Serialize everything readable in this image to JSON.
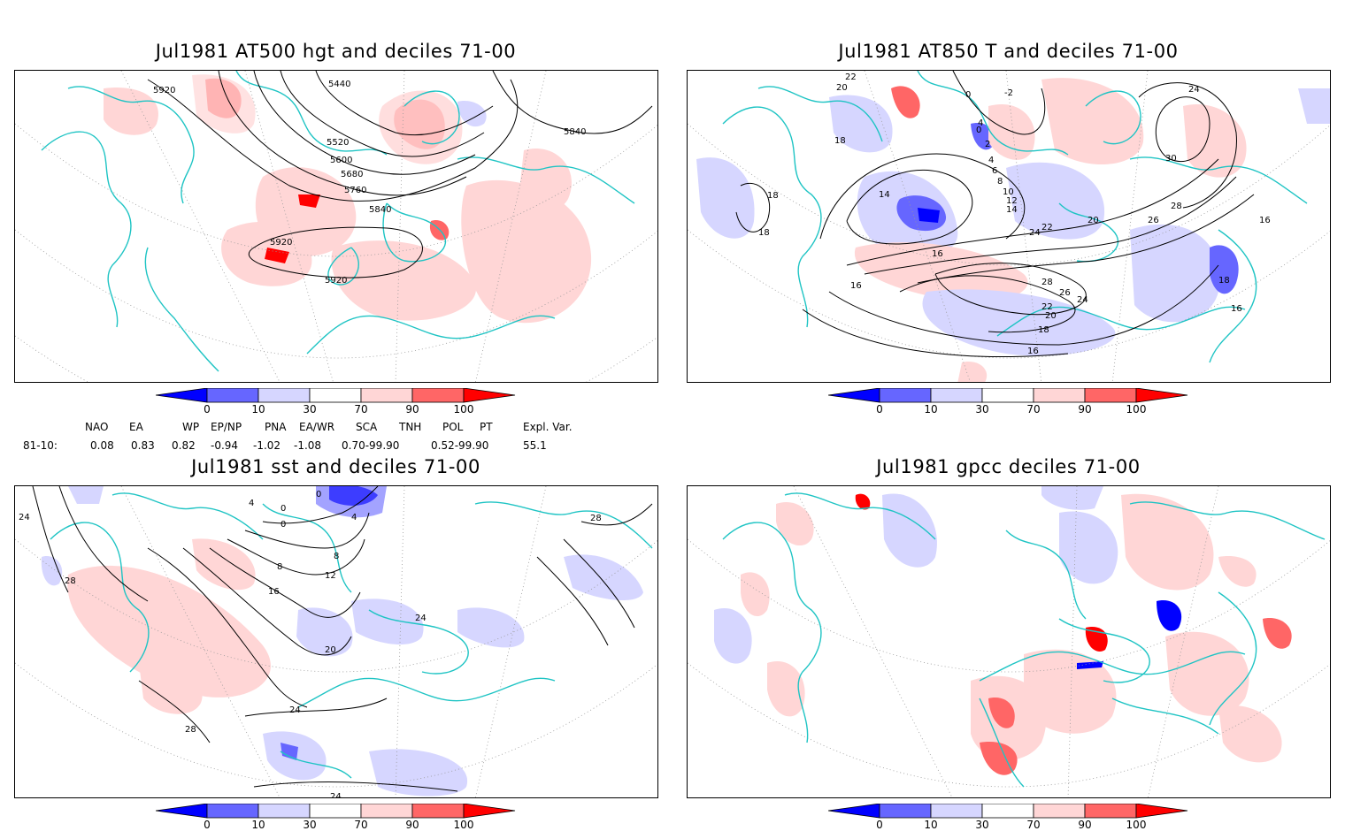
{
  "panels": [
    {
      "id": "at500",
      "title": "Jul1981 AT500 hgt and deciles 71-00",
      "contour_labels": [
        "5920",
        "5440",
        "5520",
        "5600",
        "5680",
        "5760",
        "5840",
        "5840",
        "5920",
        "5920"
      ]
    },
    {
      "id": "at850",
      "title": "Jul1981 AT850 T and deciles 71-00",
      "contour_labels": [
        "22",
        "20",
        "0",
        "-2",
        "24",
        "4",
        "0",
        "2",
        "18",
        "4",
        "6",
        "8",
        "10",
        "12",
        "14",
        "14",
        "20",
        "22",
        "24",
        "26",
        "28",
        "30",
        "16",
        "18",
        "18",
        "16",
        "16",
        "28",
        "26",
        "24",
        "22",
        "20",
        "18",
        "16",
        "18",
        "16"
      ]
    },
    {
      "id": "sst",
      "title": "Jul1981 sst and deciles 71-00",
      "contour_labels": [
        "0",
        "4",
        "0",
        "0",
        "4",
        "24",
        "28",
        "28",
        "8",
        "8",
        "12",
        "16",
        "20",
        "24",
        "24",
        "28",
        "24"
      ]
    },
    {
      "id": "gpcc",
      "title": "Jul1981 gpcc deciles 71-00",
      "contour_labels": []
    }
  ],
  "colorbar": {
    "ticks": [
      "0",
      "10",
      "30",
      "70",
      "90",
      "100"
    ],
    "colors": {
      "below_0": "#0000ff",
      "b0_10": "#6666ff",
      "b10_30": "#d6d6ff",
      "b30_70": "#ffffff",
      "b70_90": "#ffd6d6",
      "b90_100": "#ff6666",
      "above_100": "#ff0000"
    }
  },
  "indices": {
    "row_label": "81-10:",
    "items": [
      {
        "name": "NAO",
        "value": "0.08"
      },
      {
        "name": "EA",
        "value": "0.83"
      },
      {
        "name": "WP",
        "value": "0.82"
      },
      {
        "name": "EP/NP",
        "value": "-0.94"
      },
      {
        "name": "PNA",
        "value": "-1.02"
      },
      {
        "name": "EA/WR",
        "value": "-1.08"
      },
      {
        "name": "SCA",
        "value": "0.70-99.90"
      },
      {
        "name": "TNH",
        "value": ""
      },
      {
        "name": "POL",
        "value": "0.52-99.90"
      },
      {
        "name": "PT",
        "value": ""
      },
      {
        "name": "Expl. Var.",
        "value": "55.1"
      }
    ]
  },
  "colors": {
    "coast": "#1fc4c4",
    "contour": "#000000",
    "grid": "#999999"
  }
}
